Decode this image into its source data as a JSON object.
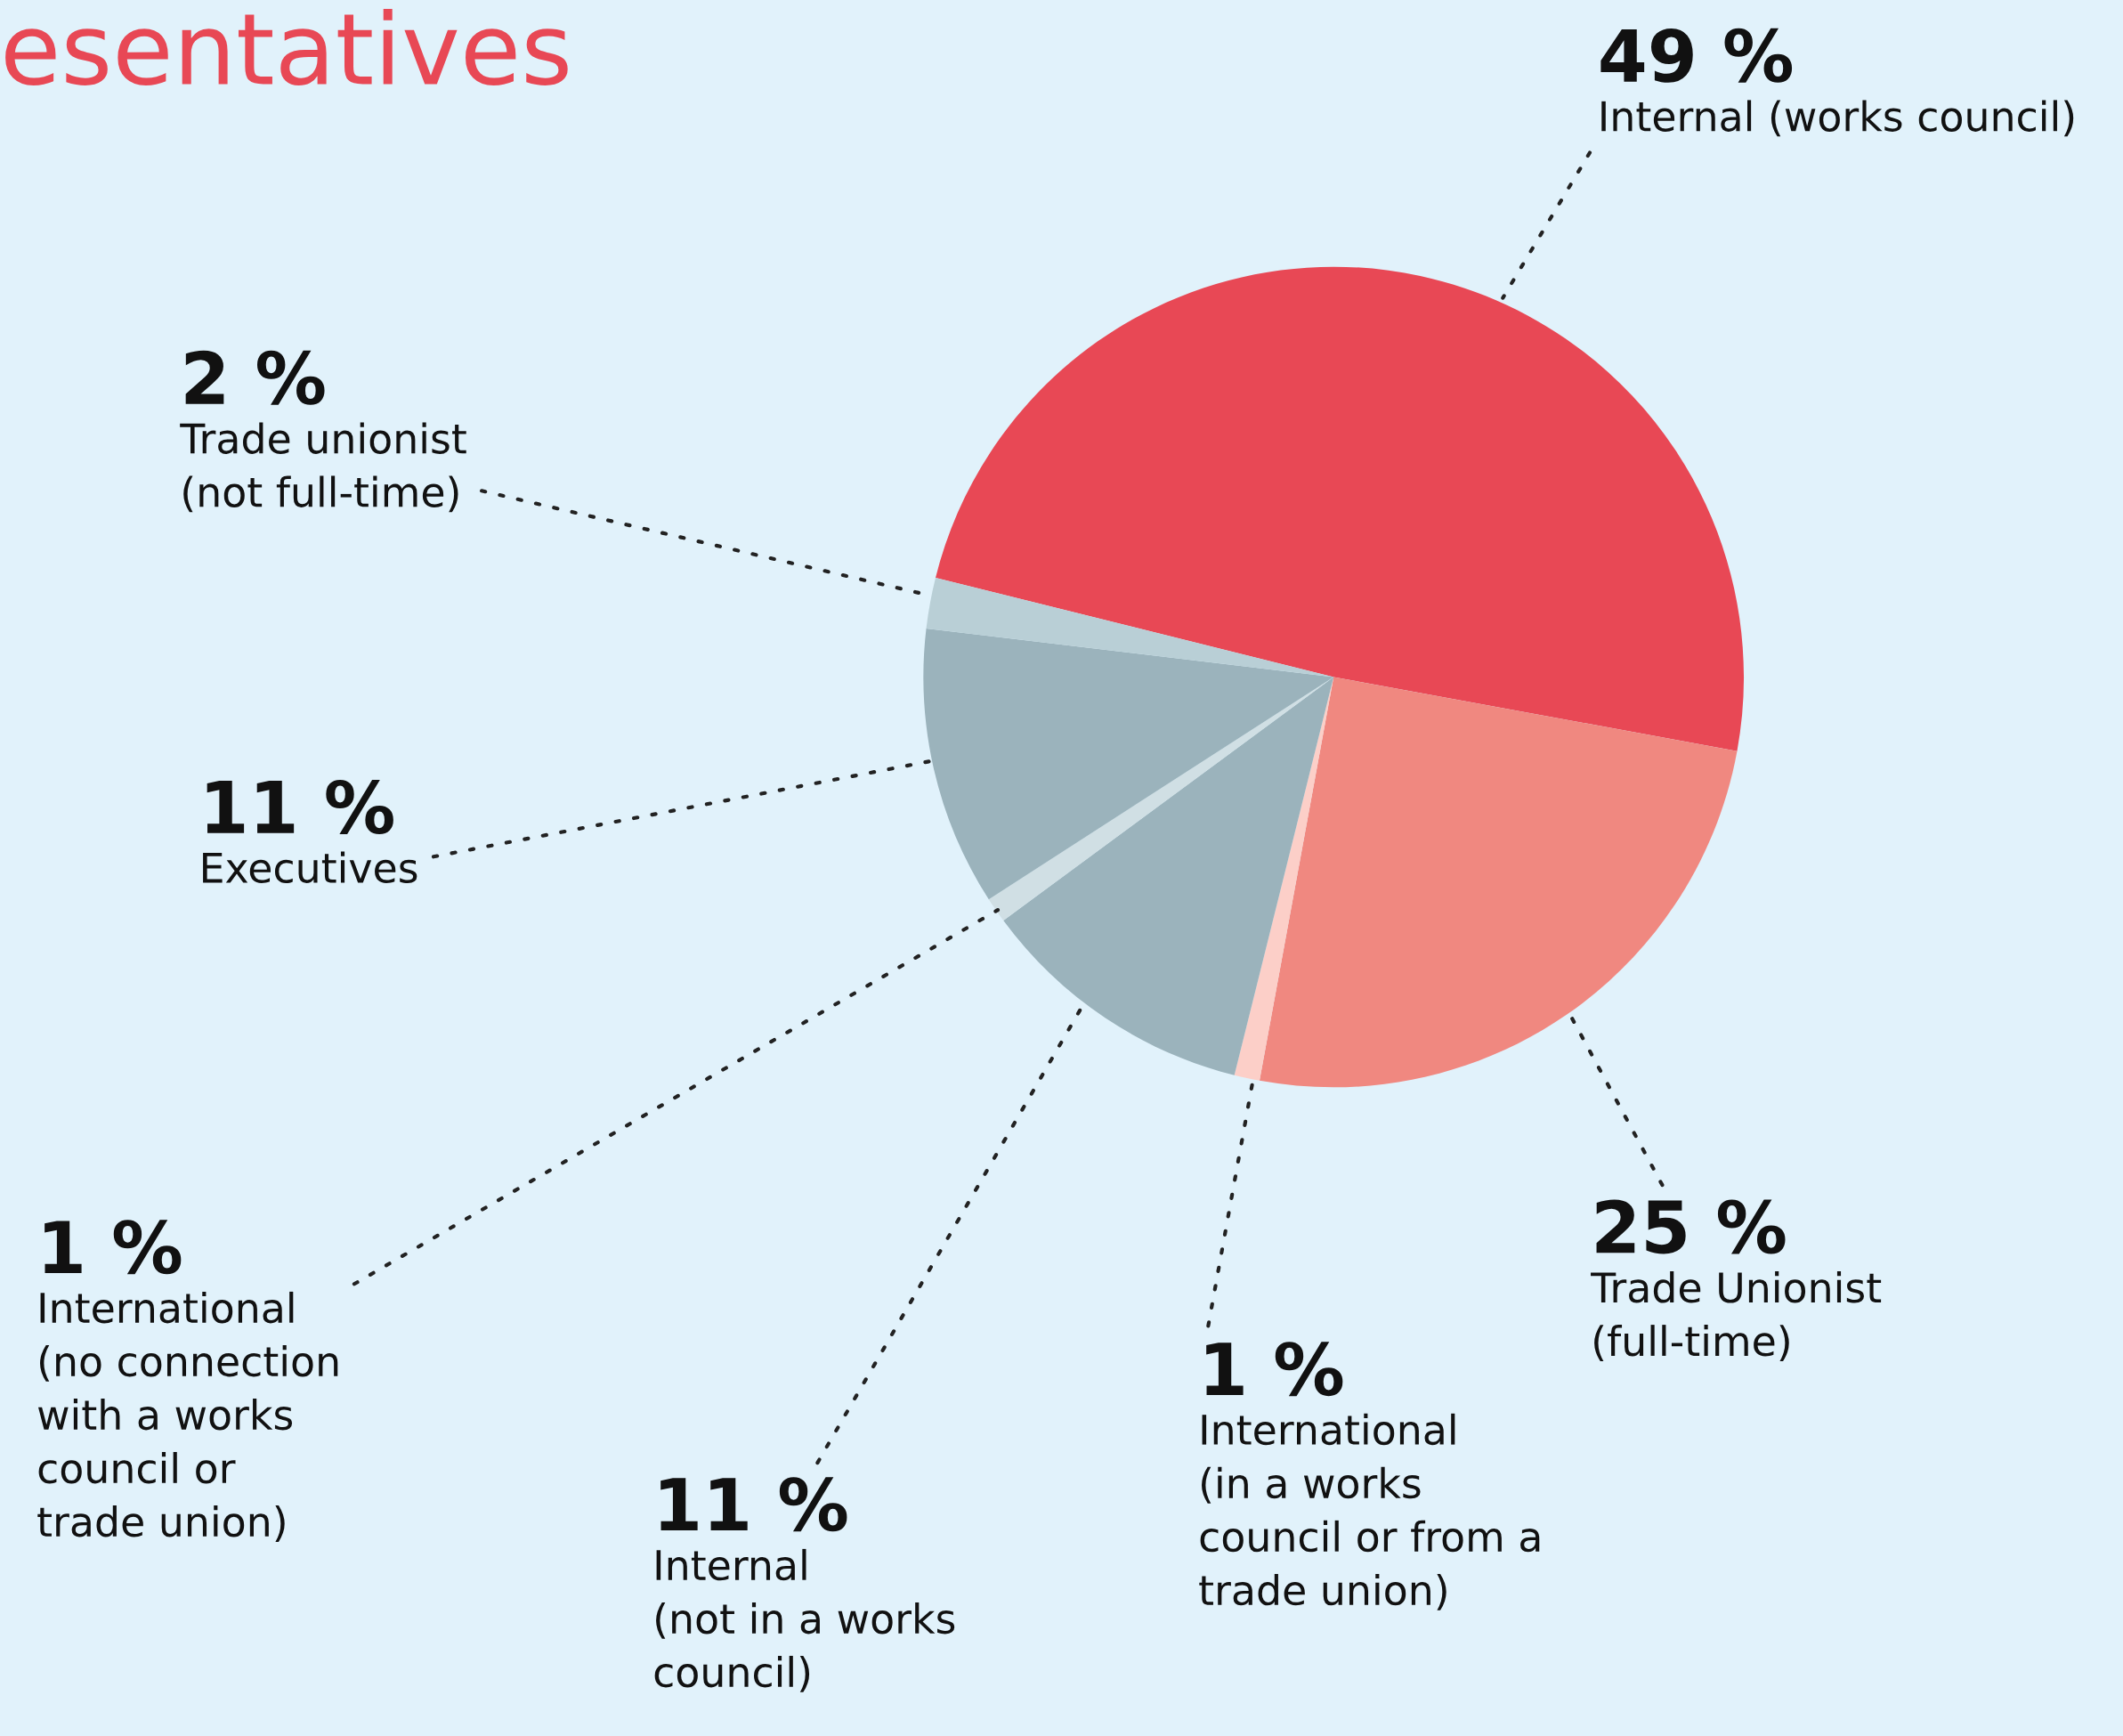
{
  "chart_data": {
    "type": "pie",
    "title": "esentatives",
    "categories": [
      "Internal (works council)",
      "Trade Unionist\n(full-time)",
      "International\n(in a works\ncouncil or from a\ntrade union)",
      "Internal\n(not in a works\ncouncil)",
      "International\n(no connection\nwith a works\ncouncil or\ntrade union)",
      "Executives",
      "Trade unionist\n(not full-time)"
    ],
    "values": [
      49,
      25,
      1,
      11,
      1,
      11,
      2
    ],
    "colors": [
      "#e84855",
      "#f08880",
      "#fccfc8",
      "#9bb3bc",
      "#d0dfe4",
      "#9bb3bc",
      "#b9cfd6"
    ],
    "value_labels": [
      "49 %",
      "25 %",
      "1 %",
      "11 %",
      "1 %",
      "11 %",
      "2 %"
    ]
  }
}
